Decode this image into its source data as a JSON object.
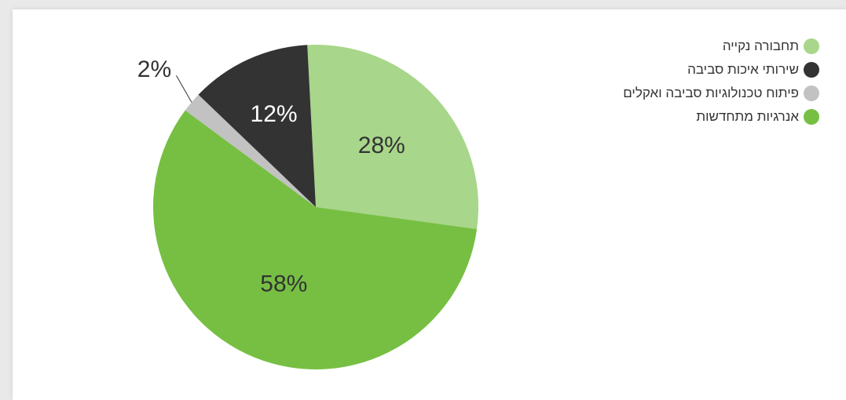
{
  "chart_data": {
    "type": "pie",
    "title": "",
    "categories": [
      "תחבורה נקייה",
      "אנרגיות מתחדשות",
      "פיתוח טכנולוגיות סביבה ואקלים",
      "שירותי איכות סביבה"
    ],
    "values": [
      28,
      58,
      2,
      12
    ],
    "labels": [
      "28%",
      "58%",
      "2%",
      "12%"
    ],
    "colors": [
      "#a8d68a",
      "#76bf43",
      "#c2c2c2",
      "#333333"
    ],
    "label_colors": [
      "#333333",
      "#333333",
      "#333333",
      "#ffffff"
    ],
    "legend": {
      "position": "top-right",
      "items": [
        {
          "label": "תחבורה נקייה",
          "color": "#a8d68a"
        },
        {
          "label": "שירותי איכות סביבה",
          "color": "#333333"
        },
        {
          "label": "פיתוח טכנולוגיות סביבה ואקלים",
          "color": "#c2c2c2"
        },
        {
          "label": "אנרגיות מתחדשות",
          "color": "#76bf43"
        }
      ]
    }
  }
}
